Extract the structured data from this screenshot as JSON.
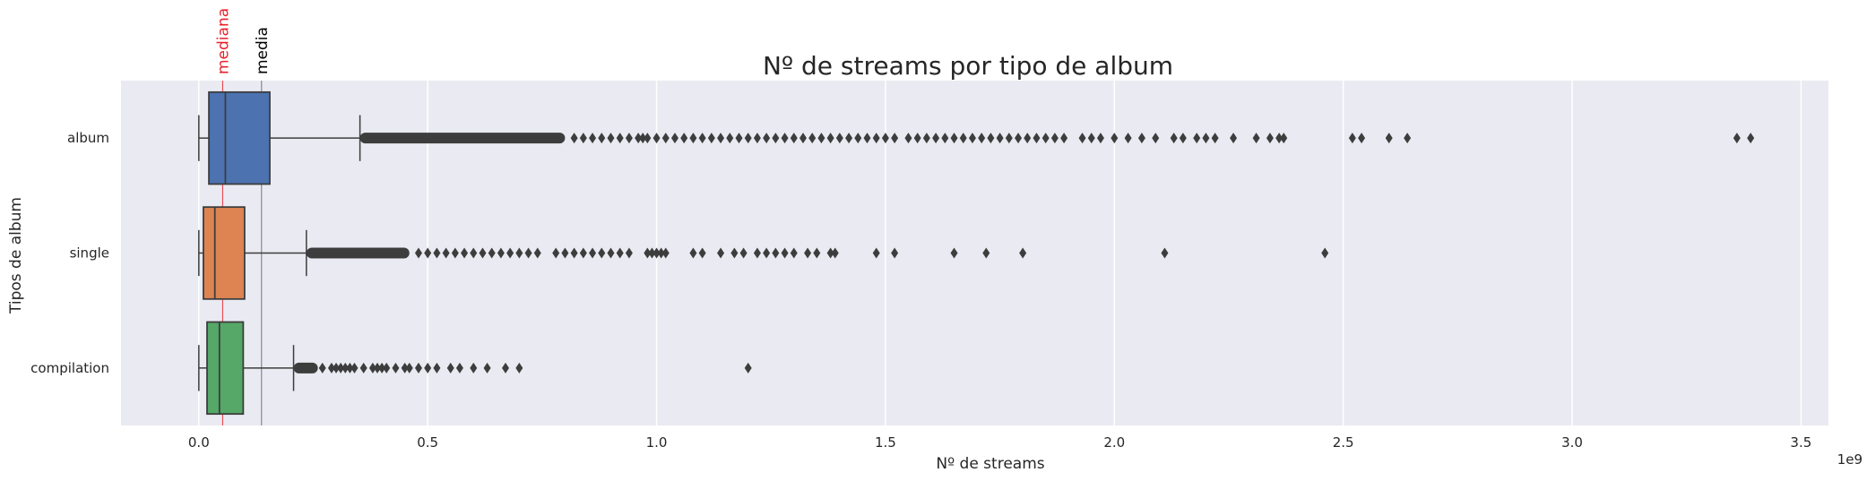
{
  "chart_data": {
    "type": "boxplot",
    "orientation": "horizontal",
    "title": "Nº de streams por tipo de album",
    "xlabel": "Nº de streams",
    "ylabel": "Tipos de album",
    "x_offset_label": "1e9",
    "x_ticks": [
      0.0,
      0.5,
      1.0,
      1.5,
      2.0,
      2.5,
      3.0,
      3.5
    ],
    "x_tick_labels": [
      "0.0",
      "0.5",
      "1.0",
      "1.5",
      "2.0",
      "2.5",
      "3.0",
      "3.5"
    ],
    "xlim": [
      -0.17,
      3.56
    ],
    "x_unit_multiplier": 1000000000,
    "grid": true,
    "background": "#eaeaf2",
    "reference_lines": [
      {
        "label": "mediana",
        "x": 0.052,
        "color": "#e8202a"
      },
      {
        "label": "media",
        "x": 0.137,
        "color": "#000000"
      }
    ],
    "categories": [
      "album",
      "single",
      "compilation"
    ],
    "series": [
      {
        "name": "album",
        "color": "#4c72b0",
        "whisker_low": 0.0,
        "q1": 0.022,
        "median": 0.058,
        "q3": 0.155,
        "whisker_high": 0.352,
        "outliers_dense_range": [
          0.352,
          0.8
        ],
        "outliers": [
          0.82,
          0.84,
          0.86,
          0.88,
          0.9,
          0.92,
          0.94,
          0.96,
          0.97,
          0.98,
          1.0,
          1.02,
          1.04,
          1.06,
          1.08,
          1.1,
          1.12,
          1.14,
          1.16,
          1.18,
          1.2,
          1.22,
          1.24,
          1.26,
          1.28,
          1.3,
          1.32,
          1.34,
          1.36,
          1.38,
          1.4,
          1.42,
          1.44,
          1.46,
          1.48,
          1.5,
          1.52,
          1.55,
          1.57,
          1.59,
          1.61,
          1.63,
          1.65,
          1.67,
          1.69,
          1.71,
          1.73,
          1.75,
          1.77,
          1.79,
          1.81,
          1.83,
          1.85,
          1.87,
          1.89,
          1.93,
          1.95,
          1.97,
          2.0,
          2.03,
          2.06,
          2.09,
          2.13,
          2.15,
          2.18,
          2.2,
          2.22,
          2.26,
          2.31,
          2.34,
          2.36,
          2.37,
          2.52,
          2.54,
          2.6,
          2.64,
          3.36,
          3.39
        ]
      },
      {
        "name": "single",
        "color": "#dd8452",
        "whisker_low": 0.0,
        "q1": 0.01,
        "median": 0.035,
        "q3": 0.1,
        "whisker_high": 0.235,
        "outliers_dense_range": [
          0.235,
          0.46
        ],
        "outliers": [
          0.48,
          0.5,
          0.52,
          0.54,
          0.56,
          0.58,
          0.6,
          0.62,
          0.64,
          0.66,
          0.68,
          0.7,
          0.72,
          0.74,
          0.78,
          0.8,
          0.82,
          0.84,
          0.86,
          0.88,
          0.9,
          0.92,
          0.94,
          0.98,
          0.99,
          1.0,
          1.01,
          1.02,
          1.08,
          1.1,
          1.14,
          1.17,
          1.19,
          1.22,
          1.24,
          1.26,
          1.28,
          1.3,
          1.33,
          1.35,
          1.38,
          1.39,
          1.48,
          1.52,
          1.65,
          1.72,
          1.8,
          2.11,
          2.46
        ]
      },
      {
        "name": "compilation",
        "color": "#55a868",
        "whisker_low": 0.0,
        "q1": 0.018,
        "median": 0.045,
        "q3": 0.097,
        "whisker_high": 0.207,
        "outliers_dense_range": [
          0.207,
          0.26
        ],
        "outliers": [
          0.27,
          0.29,
          0.3,
          0.31,
          0.32,
          0.33,
          0.34,
          0.36,
          0.38,
          0.39,
          0.4,
          0.41,
          0.43,
          0.45,
          0.46,
          0.48,
          0.5,
          0.52,
          0.55,
          0.57,
          0.6,
          0.63,
          0.67,
          0.7,
          1.2
        ]
      }
    ]
  }
}
